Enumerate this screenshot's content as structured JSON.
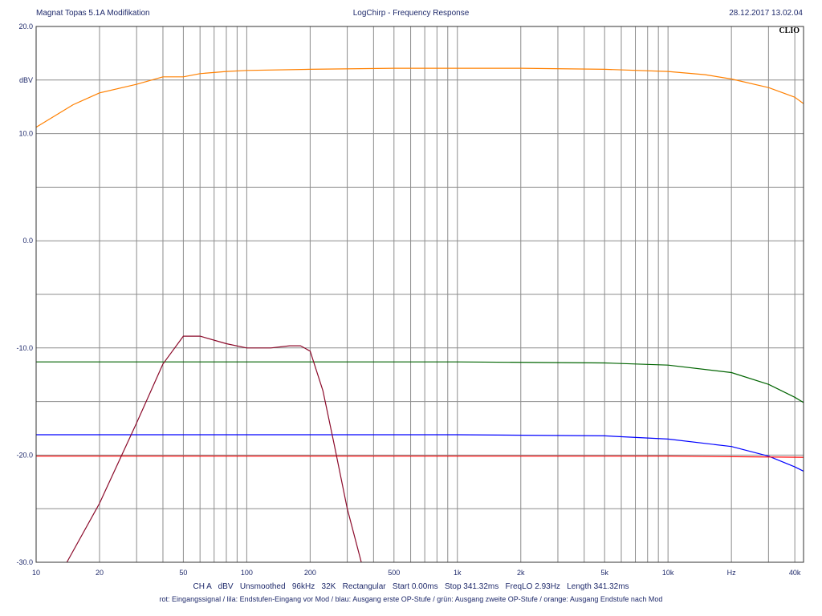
{
  "header": {
    "left": "Magnat Topas 5.1A Modifikation",
    "center": "LogChirp - Frequency Response",
    "right": "28.12.2017 13.02.04"
  },
  "brand": "CLIO",
  "settings_line": "CH A   dBV   Unsmoothed   96kHz   32K   Rectangular   Start 0.00ms   Stop 341.32ms   FreqLO 2.93Hz   Length 341.32ms",
  "legend_note": "rot: Eingangssignal / lila: Endstufen-Eingang vor Mod / blau: Ausgang erste OP-Stufe / grün: Ausgang zweite OP-Stufe / orange: Ausgang Endstufe nach Mod",
  "chart_data": {
    "type": "line",
    "title": "LogChirp - Frequency Response",
    "xlabel": "Hz",
    "ylabel": "dBV",
    "x_scale": "log",
    "xlim": [
      10,
      44000
    ],
    "ylim": [
      -30,
      20
    ],
    "grid": true,
    "y_ticks": [
      {
        "value": 20,
        "label": "20.0"
      },
      {
        "value": 15,
        "label": "dBV"
      },
      {
        "value": 10,
        "label": "10.0"
      },
      {
        "value": 0,
        "label": "0.0"
      },
      {
        "value": -10,
        "label": "-10.0"
      },
      {
        "value": -20,
        "label": "-20.0"
      },
      {
        "value": -30,
        "label": "-30.0"
      }
    ],
    "x_ticks": [
      {
        "value": 10,
        "label": "10"
      },
      {
        "value": 20,
        "label": "20"
      },
      {
        "value": 50,
        "label": "50"
      },
      {
        "value": 100,
        "label": "100"
      },
      {
        "value": 200,
        "label": "200"
      },
      {
        "value": 500,
        "label": "500"
      },
      {
        "value": 1000,
        "label": "1k"
      },
      {
        "value": 2000,
        "label": "2k"
      },
      {
        "value": 5000,
        "label": "5k"
      },
      {
        "value": 10000,
        "label": "10k"
      },
      {
        "value": 20000,
        "label": "Hz"
      },
      {
        "value": 40000,
        "label": "40k"
      }
    ],
    "series": [
      {
        "color": "#ff8000",
        "points": [
          [
            10,
            10.6
          ],
          [
            15,
            12.7
          ],
          [
            20,
            13.8
          ],
          [
            30,
            14.6
          ],
          [
            40,
            15.3
          ],
          [
            50,
            15.3
          ],
          [
            60,
            15.6
          ],
          [
            80,
            15.8
          ],
          [
            100,
            15.9
          ],
          [
            200,
            16.0
          ],
          [
            500,
            16.1
          ],
          [
            1000,
            16.1
          ],
          [
            2000,
            16.1
          ],
          [
            5000,
            16.0
          ],
          [
            10000,
            15.8
          ],
          [
            15000,
            15.5
          ],
          [
            20000,
            15.1
          ],
          [
            30000,
            14.3
          ],
          [
            40000,
            13.4
          ],
          [
            44000,
            12.8
          ]
        ]
      },
      {
        "color": "#006400",
        "points": [
          [
            10,
            -11.3
          ],
          [
            100,
            -11.3
          ],
          [
            1000,
            -11.3
          ],
          [
            5000,
            -11.4
          ],
          [
            10000,
            -11.6
          ],
          [
            20000,
            -12.3
          ],
          [
            30000,
            -13.4
          ],
          [
            40000,
            -14.6
          ],
          [
            44000,
            -15.1
          ]
        ]
      },
      {
        "color": "#0000ff",
        "points": [
          [
            10,
            -18.1
          ],
          [
            100,
            -18.1
          ],
          [
            1000,
            -18.1
          ],
          [
            5000,
            -18.2
          ],
          [
            10000,
            -18.5
          ],
          [
            20000,
            -19.2
          ],
          [
            30000,
            -20.1
          ],
          [
            40000,
            -21.1
          ],
          [
            44000,
            -21.5
          ]
        ]
      },
      {
        "color": "#ff0000",
        "points": [
          [
            10,
            -20.1
          ],
          [
            100,
            -20.1
          ],
          [
            1000,
            -20.1
          ],
          [
            10000,
            -20.1
          ],
          [
            44000,
            -20.2
          ]
        ]
      },
      {
        "color": "#8b0a2a",
        "points": [
          [
            14,
            -30
          ],
          [
            20,
            -24.5
          ],
          [
            30,
            -17
          ],
          [
            40,
            -11.5
          ],
          [
            50,
            -8.9
          ],
          [
            60,
            -8.9
          ],
          [
            80,
            -9.6
          ],
          [
            100,
            -10.0
          ],
          [
            130,
            -10.0
          ],
          [
            160,
            -9.8
          ],
          [
            180,
            -9.8
          ],
          [
            200,
            -10.3
          ],
          [
            230,
            -14
          ],
          [
            260,
            -19
          ],
          [
            300,
            -25
          ],
          [
            350,
            -30
          ]
        ]
      }
    ]
  }
}
